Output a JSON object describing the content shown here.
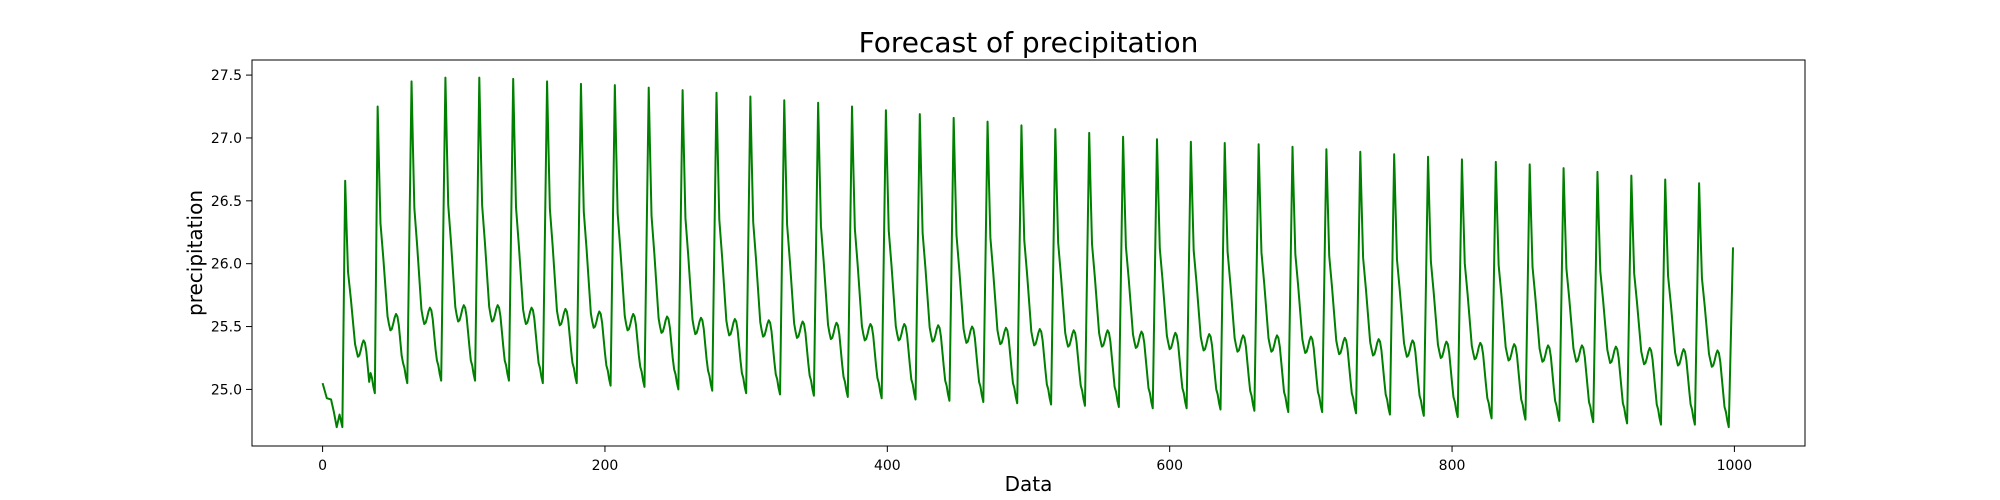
{
  "chart_data": {
    "type": "line",
    "title": "Forecast of precipitation",
    "xlabel": "Data",
    "ylabel": "precipitation",
    "xlim": [
      -50,
      1050
    ],
    "ylim": [
      24.55,
      27.62
    ],
    "x_ticks": [
      0,
      200,
      400,
      600,
      800,
      1000
    ],
    "y_ticks": [
      25.0,
      25.5,
      26.0,
      26.5,
      27.0,
      27.5
    ],
    "x_tick_labels": [
      "0",
      "200",
      "400",
      "600",
      "800",
      "1000"
    ],
    "y_tick_labels": [
      "25.0",
      "25.5",
      "26.0",
      "26.5",
      "27.0",
      "27.5"
    ],
    "grid": false,
    "legend": "none",
    "series": [
      {
        "color": "#008000",
        "x_start": 0,
        "x_end": 999,
        "period": 24,
        "initial": {
          "x": [
            0,
            3,
            6,
            8,
            10,
            12,
            14,
            16
          ],
          "y": [
            25.05,
            24.93,
            24.92,
            24.82,
            24.7,
            24.8,
            24.7,
            26.66
          ]
        },
        "peak_x": [
          16,
          39,
          63,
          87,
          111,
          135,
          159,
          183,
          207,
          231,
          255,
          279,
          303,
          327,
          351,
          375,
          399,
          423,
          447,
          471,
          495,
          519,
          543,
          567,
          591,
          615,
          639,
          663,
          687,
          711,
          735,
          759,
          783,
          807,
          831,
          855,
          879,
          903,
          927,
          951,
          975
        ],
        "peaks": [
          26.66,
          27.25,
          27.45,
          27.48,
          27.48,
          27.47,
          27.45,
          27.43,
          27.42,
          27.4,
          27.38,
          27.36,
          27.33,
          27.3,
          27.28,
          27.25,
          27.22,
          27.19,
          27.16,
          27.13,
          27.1,
          27.07,
          27.04,
          27.01,
          26.99,
          26.97,
          26.96,
          26.95,
          26.93,
          26.91,
          26.89,
          26.87,
          26.85,
          26.83,
          26.81,
          26.79,
          26.76,
          26.73,
          26.7,
          26.67,
          26.64
        ],
        "troughs": [
          24.97,
          25.05,
          25.07,
          25.07,
          25.07,
          25.05,
          25.05,
          25.03,
          25.02,
          25.0,
          24.99,
          24.97,
          24.96,
          24.95,
          24.94,
          24.93,
          24.92,
          24.91,
          24.9,
          24.89,
          24.88,
          24.87,
          24.86,
          24.85,
          24.85,
          24.84,
          24.83,
          24.82,
          24.82,
          24.81,
          24.8,
          24.79,
          24.78,
          24.77,
          24.76,
          24.75,
          24.74,
          24.73,
          24.72,
          24.72,
          24.7
        ],
        "plateaus": [
          25.32,
          25.53,
          25.58,
          25.6,
          25.6,
          25.58,
          25.57,
          25.55,
          25.53,
          25.51,
          25.5,
          25.49,
          25.48,
          25.47,
          25.46,
          25.45,
          25.45,
          25.44,
          25.43,
          25.42,
          25.41,
          25.4,
          25.4,
          25.39,
          25.38,
          25.37,
          25.36,
          25.36,
          25.35,
          25.34,
          25.33,
          25.32,
          25.31,
          25.3,
          25.29,
          25.28,
          25.28,
          25.27,
          25.26,
          25.25,
          25.24
        ],
        "final": {
          "x": [
            999
          ],
          "y": [
            26.13
          ]
        }
      }
    ]
  }
}
